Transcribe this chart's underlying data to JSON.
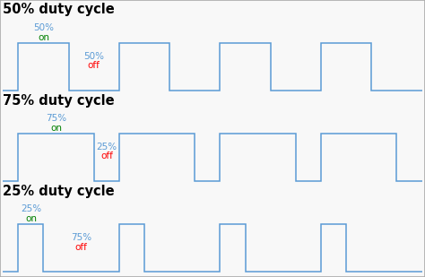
{
  "panels": [
    {
      "title": "50% duty cycle",
      "duty": 0.5,
      "pct_on": "50%",
      "pct_off": "50%"
    },
    {
      "title": "75% duty cycle",
      "duty": 0.75,
      "pct_on": "75%",
      "pct_off": "25%"
    },
    {
      "title": "25% duty cycle",
      "duty": 0.25,
      "pct_on": "25%",
      "pct_off": "75%"
    }
  ],
  "signal_color": "#5b9bd5",
  "background_color": "#f8f8f8",
  "title_fontsize": 10.5,
  "label_fontsize": 7.5,
  "num_cycles": 4,
  "period": 1.0
}
